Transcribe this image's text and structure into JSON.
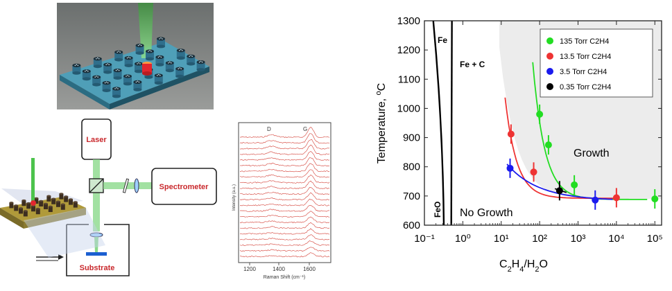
{
  "schematic": {
    "laser_label": "Laser",
    "spectrometer_label": "Spectrometer",
    "substrate_label": "Substrate"
  },
  "raman": {
    "peak_d": "D",
    "peak_g": "G",
    "ylabel": "Intensity (a.u.)",
    "xlabel": "Raman Shift (cm⁻¹)",
    "ticks": [
      "1200",
      "1400",
      "1600"
    ]
  },
  "chart_data": {
    "type": "scatter",
    "title": "",
    "xlabel": "C2H4/H2O",
    "ylabel": "Temperature, °C",
    "xscale": "log",
    "xlim": [
      0.1,
      150000
    ],
    "ylim": [
      600,
      1300
    ],
    "x_ticks": [
      "10⁻¹",
      "10⁰",
      "10¹",
      "10²",
      "10³",
      "10⁴",
      "10⁵"
    ],
    "y_ticks": [
      "600",
      "700",
      "800",
      "900",
      "1000",
      "1100",
      "1200",
      "1300"
    ],
    "legend_position": "top-right",
    "regions": [
      {
        "label": "Fe"
      },
      {
        "label": "Fe + C"
      },
      {
        "label": "FeO"
      },
      {
        "label": "No Growth"
      },
      {
        "label": "Growth"
      }
    ],
    "series": [
      {
        "name": "135 Torr C2H4",
        "color": "#22dd22",
        "x": [
          100,
          170,
          800,
          100000
        ],
        "y": [
          980,
          875,
          738,
          690
        ]
      },
      {
        "name": "13.5 Torr C2H4",
        "color": "#ee3333",
        "x": [
          18,
          70,
          10000
        ],
        "y": [
          912,
          782,
          694
        ]
      },
      {
        "name": "3.5 Torr C2H4",
        "color": "#1a1aee",
        "x": [
          17,
          2800
        ],
        "y": [
          795,
          686
        ]
      },
      {
        "name": "0.35 Torr C2H4",
        "color": "#000000",
        "x": [
          330
        ],
        "y": [
          718
        ]
      }
    ]
  }
}
